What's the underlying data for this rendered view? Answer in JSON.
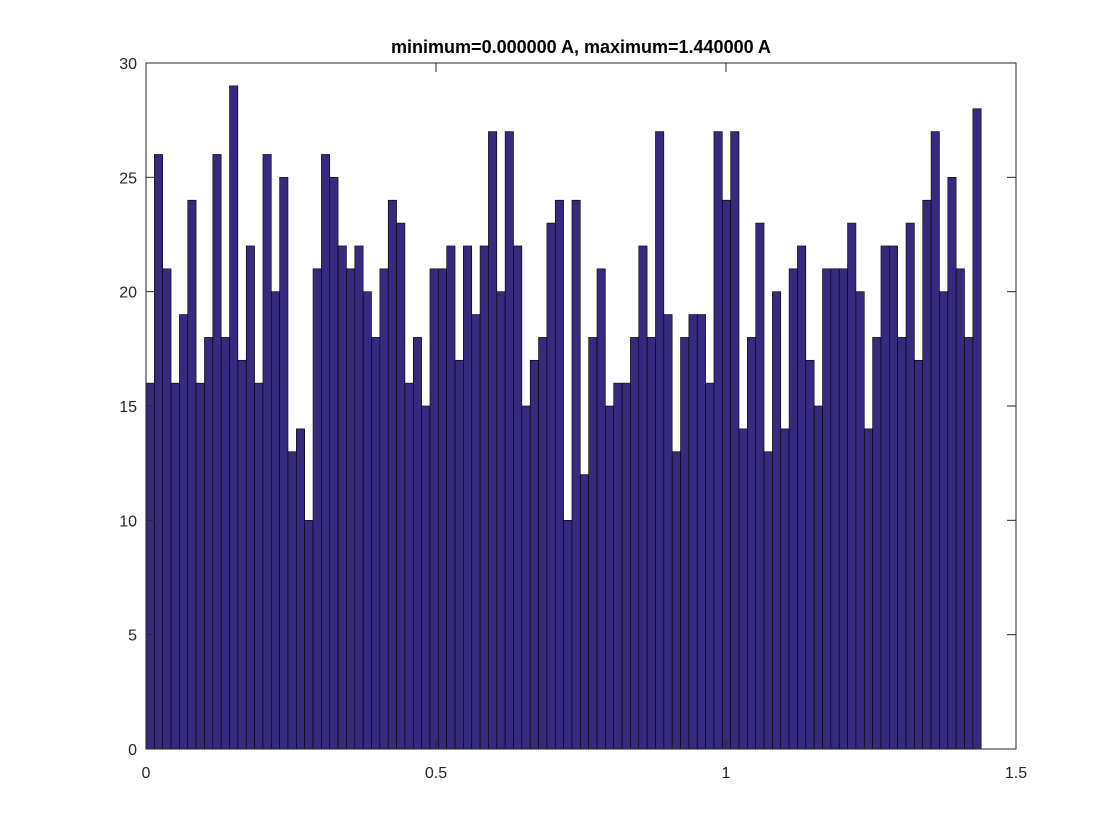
{
  "chart_data": {
    "type": "bar",
    "title": "minimum=0.000000 A, maximum=1.440000 A",
    "xlabel": "",
    "ylabel": "",
    "xlim": [
      0,
      1.5
    ],
    "ylim": [
      0,
      30
    ],
    "xticks": [
      0,
      0.5,
      1,
      1.5
    ],
    "xtick_labels": [
      "0",
      "0.5",
      "1",
      "1.5"
    ],
    "yticks": [
      0,
      5,
      10,
      15,
      20,
      25,
      30
    ],
    "ytick_labels": [
      "0",
      "5",
      "10",
      "15",
      "20",
      "25",
      "30"
    ],
    "bin_start": 0,
    "bin_end": 1.44,
    "grid": false,
    "bar_color": "#362a7e",
    "edge_color": "#000000",
    "values": [
      16,
      26,
      21,
      16,
      19,
      24,
      16,
      18,
      26,
      18,
      29,
      17,
      22,
      16,
      26,
      20,
      25,
      13,
      14,
      10,
      21,
      26,
      25,
      22,
      21,
      22,
      20,
      18,
      21,
      24,
      23,
      16,
      18,
      15,
      21,
      21,
      22,
      17,
      22,
      19,
      22,
      27,
      20,
      27,
      22,
      15,
      17,
      18,
      23,
      24,
      10,
      24,
      12,
      18,
      21,
      15,
      16,
      16,
      18,
      22,
      18,
      27,
      19,
      13,
      18,
      19,
      19,
      16,
      27,
      24,
      27,
      14,
      18,
      23,
      13,
      20,
      14,
      21,
      22,
      17,
      15,
      21,
      21,
      21,
      23,
      20,
      14,
      18,
      22,
      22,
      18,
      23,
      17,
      24,
      27,
      20,
      25,
      21,
      18,
      28
    ]
  }
}
